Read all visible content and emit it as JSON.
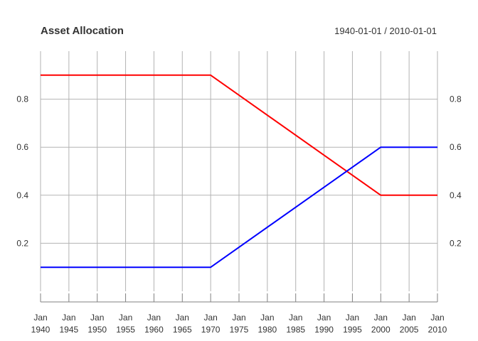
{
  "chart_data": {
    "type": "line",
    "title": "Asset Allocation",
    "date_range": "1940-01-01 / 2010-01-01",
    "xlabel": "",
    "ylabel": "",
    "x_ticks": [
      {
        "top": "Jan",
        "bottom": "1940",
        "year": 1940
      },
      {
        "top": "Jan",
        "bottom": "1945",
        "year": 1945
      },
      {
        "top": "Jan",
        "bottom": "1950",
        "year": 1950
      },
      {
        "top": "Jan",
        "bottom": "1955",
        "year": 1955
      },
      {
        "top": "Jan",
        "bottom": "1960",
        "year": 1960
      },
      {
        "top": "Jan",
        "bottom": "1965",
        "year": 1965
      },
      {
        "top": "Jan",
        "bottom": "1970",
        "year": 1970
      },
      {
        "top": "Jan",
        "bottom": "1975",
        "year": 1975
      },
      {
        "top": "Jan",
        "bottom": "1980",
        "year": 1980
      },
      {
        "top": "Jan",
        "bottom": "1985",
        "year": 1985
      },
      {
        "top": "Jan",
        "bottom": "1990",
        "year": 1990
      },
      {
        "top": "Jan",
        "bottom": "1995",
        "year": 1995
      },
      {
        "top": "Jan",
        "bottom": "2000",
        "year": 2000
      },
      {
        "top": "Jan",
        "bottom": "2005",
        "year": 2005
      },
      {
        "top": "Jan",
        "bottom": "2010",
        "year": 2010
      }
    ],
    "y_ticks": [
      0.2,
      0.4,
      0.6,
      0.8
    ],
    "y_tick_labels": [
      "0.2",
      "0.4",
      "0.6",
      "0.8"
    ],
    "xlim": [
      1940,
      2010
    ],
    "ylim": [
      0.0,
      1.0
    ],
    "grid": true,
    "y_axis_labels_both_sides": true,
    "series": [
      {
        "color": "#ff0000",
        "x": [
          1940,
          1970,
          2000,
          2010
        ],
        "values": [
          0.9,
          0.9,
          0.4,
          0.4
        ]
      },
      {
        "color": "#0000ff",
        "x": [
          1940,
          1970,
          2000,
          2010
        ],
        "values": [
          0.1,
          0.1,
          0.6,
          0.6
        ]
      }
    ]
  }
}
